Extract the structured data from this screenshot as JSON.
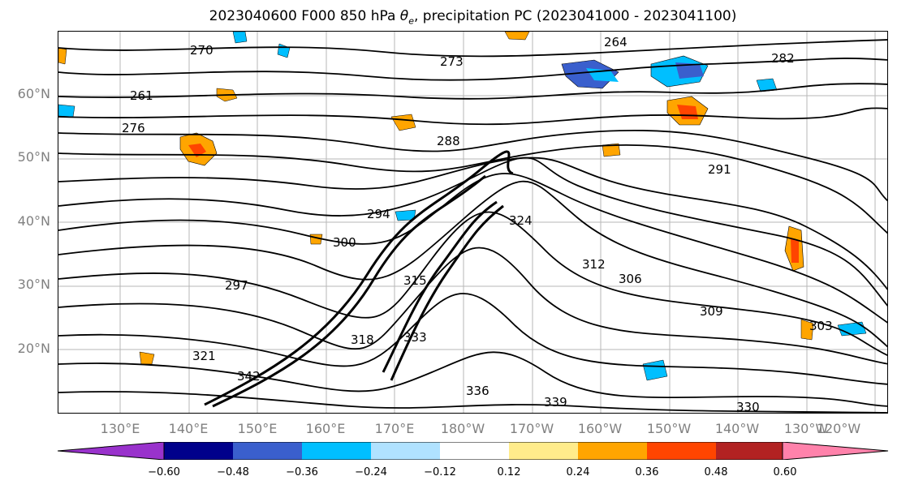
{
  "title": "2023040600 F000 850 hPa θe, precipitation PC (2023041000 - 2023041100)",
  "title_prefix": "2023040600 F000 850 hPa ",
  "title_theta": "θ",
  "title_sub": "e",
  "title_suffix": ", precipitation PC (2023041000 - 2023041100)",
  "lat_labels": [
    "60°N",
    "50°N",
    "40°N",
    "30°N",
    "20°N"
  ],
  "lon_labels": [
    "130°E",
    "140°E",
    "150°E",
    "160°E",
    "170°E",
    "180°W",
    "170°W",
    "160°W",
    "150°W",
    "140°W",
    "130°W",
    "120°W"
  ],
  "contour_labels": [
    "264",
    "270",
    "261",
    "276",
    "273",
    "282",
    "288",
    "291",
    "294",
    "297",
    "300",
    "303",
    "306",
    "309",
    "312",
    "315",
    "318",
    "321",
    "324",
    "330",
    "333",
    "336",
    "339",
    "342"
  ],
  "colorbar": {
    "ticks": [
      "−0.60",
      "−0.48",
      "−0.36",
      "−0.24",
      "−0.12",
      "0.12",
      "0.24",
      "0.36",
      "0.48",
      "0.60"
    ],
    "colors": [
      "#9932cc",
      "#00008b",
      "#3a5fcd",
      "#00bfff",
      "#b0e2ff",
      "#ffffff",
      "#ffec8b",
      "#ffa500",
      "#ff4500",
      "#b22222",
      "#ff82ab"
    ]
  }
}
